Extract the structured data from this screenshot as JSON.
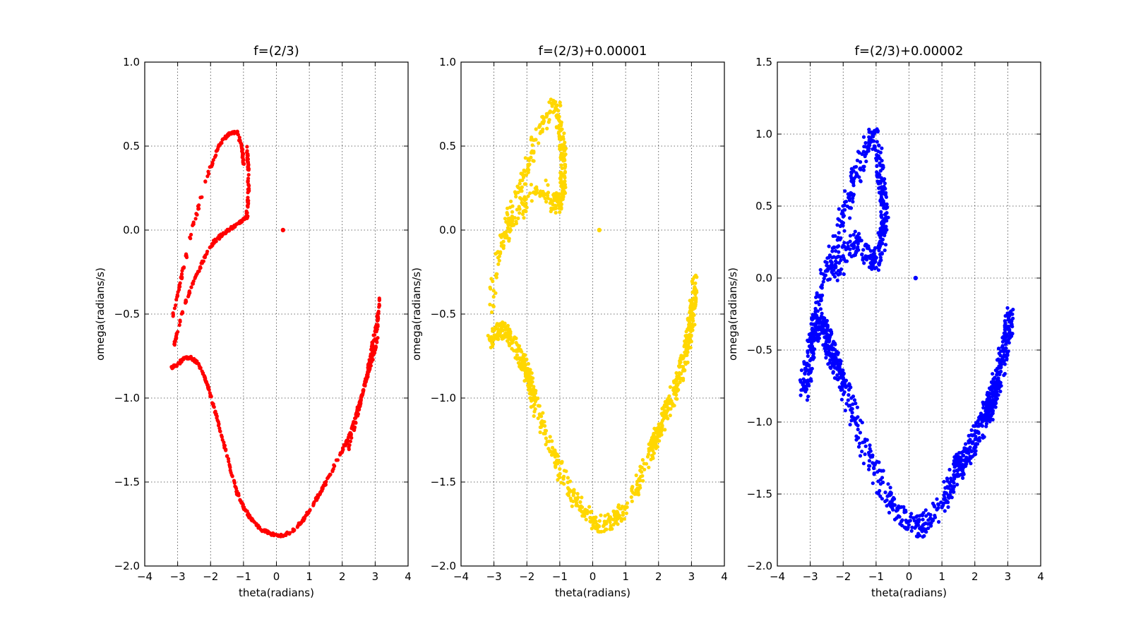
{
  "chart_data": [
    {
      "type": "scatter",
      "title": "f=(2/3)",
      "xlabel": "theta(radians)",
      "ylabel": "omega(radians/s)",
      "xlim": [
        -4,
        4
      ],
      "ylim": [
        -2.0,
        1.0
      ],
      "xticks": [
        -4,
        -3,
        -2,
        -1,
        0,
        1,
        2,
        3,
        4
      ],
      "yticks": [
        -2.0,
        -1.5,
        -1.0,
        -0.5,
        0.0,
        0.5,
        1.0
      ],
      "xtick_labels": [
        "−4",
        "−3",
        "−2",
        "−1",
        "0",
        "1",
        "2",
        "3",
        "4"
      ],
      "ytick_labels": [
        "−2.0",
        "−1.5",
        "−1.0",
        "−0.5",
        "0.0",
        "0.5",
        "1.0"
      ],
      "grid": true,
      "color": "#ff0000",
      "point_count": 900,
      "scatter": 0.0,
      "tracks": [
        {
          "fraction": 0.16,
          "x": [
            -3.15,
            -2.85,
            -2.5,
            -2.1,
            -1.8,
            -1.6,
            -1.4,
            -1.2,
            -1.05,
            -1.0
          ],
          "y": [
            -0.52,
            -0.25,
            0.05,
            0.32,
            0.48,
            0.54,
            0.58,
            0.58,
            0.5,
            0.4
          ]
        },
        {
          "fraction": 0.06,
          "x": [
            -0.9,
            -0.85,
            -0.85,
            -0.9
          ],
          "y": [
            0.5,
            0.35,
            0.2,
            0.1
          ]
        },
        {
          "fraction": 0.16,
          "x": [
            -0.88,
            -1.0,
            -1.3,
            -1.6,
            -1.9,
            -2.2,
            -2.5,
            -2.8,
            -3.1
          ],
          "y": [
            0.08,
            0.06,
            0.02,
            -0.02,
            -0.07,
            -0.17,
            -0.3,
            -0.45,
            -0.68
          ]
        },
        {
          "fraction": 0.16,
          "x": [
            -3.2,
            -3.0,
            -2.8,
            -2.6,
            -2.4,
            -2.2,
            -2.0,
            -1.8,
            -1.6,
            -1.4
          ],
          "y": [
            -0.82,
            -0.8,
            -0.76,
            -0.76,
            -0.79,
            -0.86,
            -0.98,
            -1.12,
            -1.27,
            -1.42
          ]
        },
        {
          "fraction": 0.22,
          "x": [
            -1.4,
            -1.2,
            -1.0,
            -0.7,
            -0.4,
            -0.1,
            0.2,
            0.5,
            0.8,
            1.1,
            1.4,
            1.7,
            2.0,
            2.15
          ],
          "y": [
            -1.42,
            -1.56,
            -1.65,
            -1.74,
            -1.79,
            -1.81,
            -1.82,
            -1.79,
            -1.73,
            -1.64,
            -1.54,
            -1.43,
            -1.31,
            -1.25
          ]
        },
        {
          "fraction": 0.08,
          "x": [
            2.1,
            2.35,
            2.6,
            2.85,
            3.05,
            3.1
          ],
          "y": [
            -1.29,
            -1.15,
            -0.98,
            -0.8,
            -0.62,
            -0.5
          ]
        },
        {
          "fraction": 0.08,
          "x": [
            2.2,
            2.45,
            2.7,
            2.9,
            3.05,
            3.15
          ],
          "y": [
            -1.3,
            -1.12,
            -0.9,
            -0.7,
            -0.55,
            -0.4
          ]
        },
        {
          "fraction": 0.07,
          "x": [
            2.25,
            2.5,
            2.75,
            2.95,
            3.1
          ],
          "y": [
            -1.22,
            -1.05,
            -0.88,
            -0.75,
            -0.62
          ]
        }
      ],
      "fixed_point": {
        "x": 0.2,
        "y": 0.0
      }
    },
    {
      "type": "scatter",
      "title": "f=(2/3)+0.00001",
      "xlabel": "theta(radians)",
      "ylabel": "omega(radians/s)",
      "xlim": [
        -4,
        4
      ],
      "ylim": [
        -2.0,
        1.0
      ],
      "xticks": [
        -4,
        -3,
        -2,
        -1,
        0,
        1,
        2,
        3,
        4
      ],
      "yticks": [
        -2.0,
        -1.5,
        -1.0,
        -0.5,
        0.0,
        0.5,
        1.0
      ],
      "xtick_labels": [
        "−4",
        "−3",
        "−2",
        "−1",
        "0",
        "1",
        "2",
        "3",
        "4"
      ],
      "ytick_labels": [
        "−2.0",
        "−1.5",
        "−1.0",
        "−0.5",
        "0.0",
        "0.5",
        "1.0"
      ],
      "grid": true,
      "color": "#ffd700",
      "point_count": 1200,
      "scatter": 0.045,
      "tracks": [
        {
          "fraction": 0.14,
          "x": [
            -3.1,
            -3.0,
            -2.8,
            -2.6,
            -2.4,
            -2.2,
            -2.0,
            -1.8,
            -1.6,
            -1.4,
            -1.2,
            -1.05,
            -1.0
          ],
          "y": [
            -0.45,
            -0.3,
            -0.08,
            0.05,
            0.15,
            0.25,
            0.38,
            0.5,
            0.6,
            0.68,
            0.74,
            0.7,
            0.6
          ]
        },
        {
          "fraction": 0.1,
          "x": [
            -0.95,
            -0.9,
            -0.9,
            -0.95,
            -1.0
          ],
          "y": [
            0.55,
            0.45,
            0.3,
            0.22,
            0.15
          ]
        },
        {
          "fraction": 0.1,
          "x": [
            -1.0,
            -1.2,
            -1.5,
            -1.8,
            -2.1,
            -2.4,
            -2.7
          ],
          "y": [
            0.18,
            0.15,
            0.25,
            0.22,
            0.15,
            0.05,
            -0.05
          ]
        },
        {
          "fraction": 0.18,
          "x": [
            -3.1,
            -2.9,
            -2.7,
            -2.5,
            -2.3,
            -2.1,
            -2.0,
            -1.9,
            -1.8
          ],
          "y": [
            -0.65,
            -0.6,
            -0.6,
            -0.65,
            -0.72,
            -0.8,
            -0.85,
            -0.9,
            -1.0
          ]
        },
        {
          "fraction": 0.22,
          "x": [
            -1.8,
            -1.5,
            -1.2,
            -0.9,
            -0.6,
            -0.3,
            0.0,
            0.3,
            0.6,
            0.9,
            1.2,
            1.5,
            1.8
          ],
          "y": [
            -1.0,
            -1.18,
            -1.35,
            -1.47,
            -1.58,
            -1.67,
            -1.72,
            -1.75,
            -1.73,
            -1.68,
            -1.58,
            -1.45,
            -1.3
          ]
        },
        {
          "fraction": 0.12,
          "x": [
            1.8,
            2.0,
            2.2,
            2.4,
            2.6
          ],
          "y": [
            -1.3,
            -1.2,
            -1.1,
            -1.0,
            -0.9
          ]
        },
        {
          "fraction": 0.14,
          "x": [
            2.6,
            2.8,
            2.95,
            3.05,
            3.1
          ],
          "y": [
            -0.9,
            -0.75,
            -0.6,
            -0.45,
            -0.3
          ]
        }
      ],
      "fixed_point": {
        "x": 0.2,
        "y": 0.0
      }
    },
    {
      "type": "scatter",
      "title": "f=(2/3)+0.00002",
      "xlabel": "theta(radians)",
      "ylabel": "omega(radians/s)",
      "xlim": [
        -4,
        4
      ],
      "ylim": [
        -2.0,
        1.5
      ],
      "xticks": [
        -4,
        -3,
        -2,
        -1,
        0,
        1,
        2,
        3,
        4
      ],
      "yticks": [
        -2.0,
        -1.5,
        -1.0,
        -0.5,
        0.0,
        0.5,
        1.0,
        1.5
      ],
      "xtick_labels": [
        "−4",
        "−3",
        "−2",
        "−1",
        "0",
        "1",
        "2",
        "3",
        "4"
      ],
      "ytick_labels": [
        "−2.0",
        "−1.5",
        "−1.0",
        "−0.5",
        "0.0",
        "0.5",
        "1.0",
        "1.5"
      ],
      "grid": true,
      "color": "#0000ff",
      "point_count": 1500,
      "scatter": 0.07,
      "tracks": [
        {
          "fraction": 0.14,
          "x": [
            -3.1,
            -2.95,
            -2.75,
            -2.5,
            -2.3,
            -2.1,
            -1.9,
            -1.7,
            -1.5,
            -1.3,
            -1.15,
            -1.05
          ],
          "y": [
            -0.7,
            -0.4,
            -0.15,
            0.05,
            0.2,
            0.35,
            0.5,
            0.65,
            0.78,
            0.9,
            0.97,
            1.0
          ]
        },
        {
          "fraction": 0.12,
          "x": [
            -1.0,
            -0.9,
            -0.8,
            -0.75,
            -0.8,
            -0.95,
            -1.1
          ],
          "y": [
            0.9,
            0.75,
            0.6,
            0.45,
            0.3,
            0.15,
            0.1
          ]
        },
        {
          "fraction": 0.07,
          "x": [
            -1.1,
            -1.4,
            -1.7,
            -2.0,
            -2.3
          ],
          "y": [
            0.15,
            0.2,
            0.25,
            0.15,
            0.0
          ]
        },
        {
          "fraction": 0.2,
          "x": [
            -3.2,
            -3.0,
            -2.8,
            -2.6,
            -2.4,
            -2.2,
            -2.0
          ],
          "y": [
            -0.8,
            -0.5,
            -0.3,
            -0.35,
            -0.5,
            -0.6,
            -0.7
          ]
        },
        {
          "fraction": 0.2,
          "x": [
            -2.0,
            -1.7,
            -1.4,
            -1.1,
            -0.8,
            -0.5,
            -0.2,
            0.1,
            0.4,
            0.7,
            1.0,
            1.3,
            1.6
          ],
          "y": [
            -0.7,
            -0.95,
            -1.15,
            -1.3,
            -1.45,
            -1.58,
            -1.66,
            -1.72,
            -1.72,
            -1.66,
            -1.55,
            -1.42,
            -1.3
          ]
        },
        {
          "fraction": 0.12,
          "x": [
            1.4,
            1.7,
            2.0,
            2.3,
            2.5
          ],
          "y": [
            -1.32,
            -1.25,
            -1.12,
            -0.98,
            -0.85
          ]
        },
        {
          "fraction": 0.15,
          "x": [
            2.4,
            2.6,
            2.8,
            2.95,
            3.1
          ],
          "y": [
            -0.95,
            -0.78,
            -0.6,
            -0.42,
            -0.25
          ]
        }
      ],
      "fixed_point": {
        "x": 0.2,
        "y": 0.0
      }
    }
  ]
}
